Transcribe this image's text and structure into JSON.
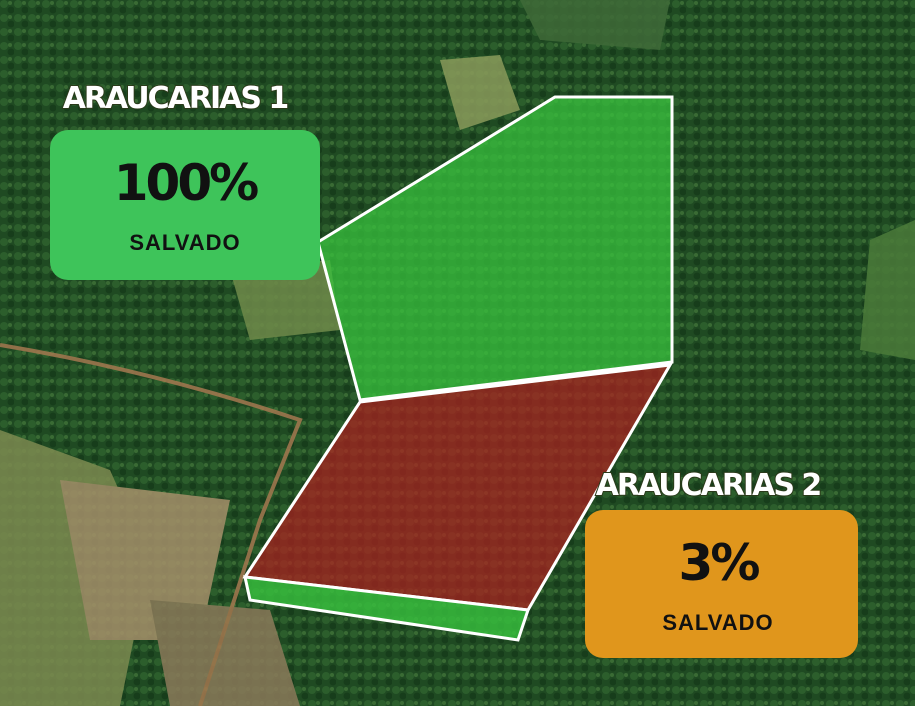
{
  "areas": [
    {
      "name": "ARAUCARIAS 1",
      "percent": "100%",
      "status": "SALVADO"
    },
    {
      "name": "ARAUCARIAS 2",
      "percent": "3%",
      "status": "SALVADO"
    }
  ]
}
